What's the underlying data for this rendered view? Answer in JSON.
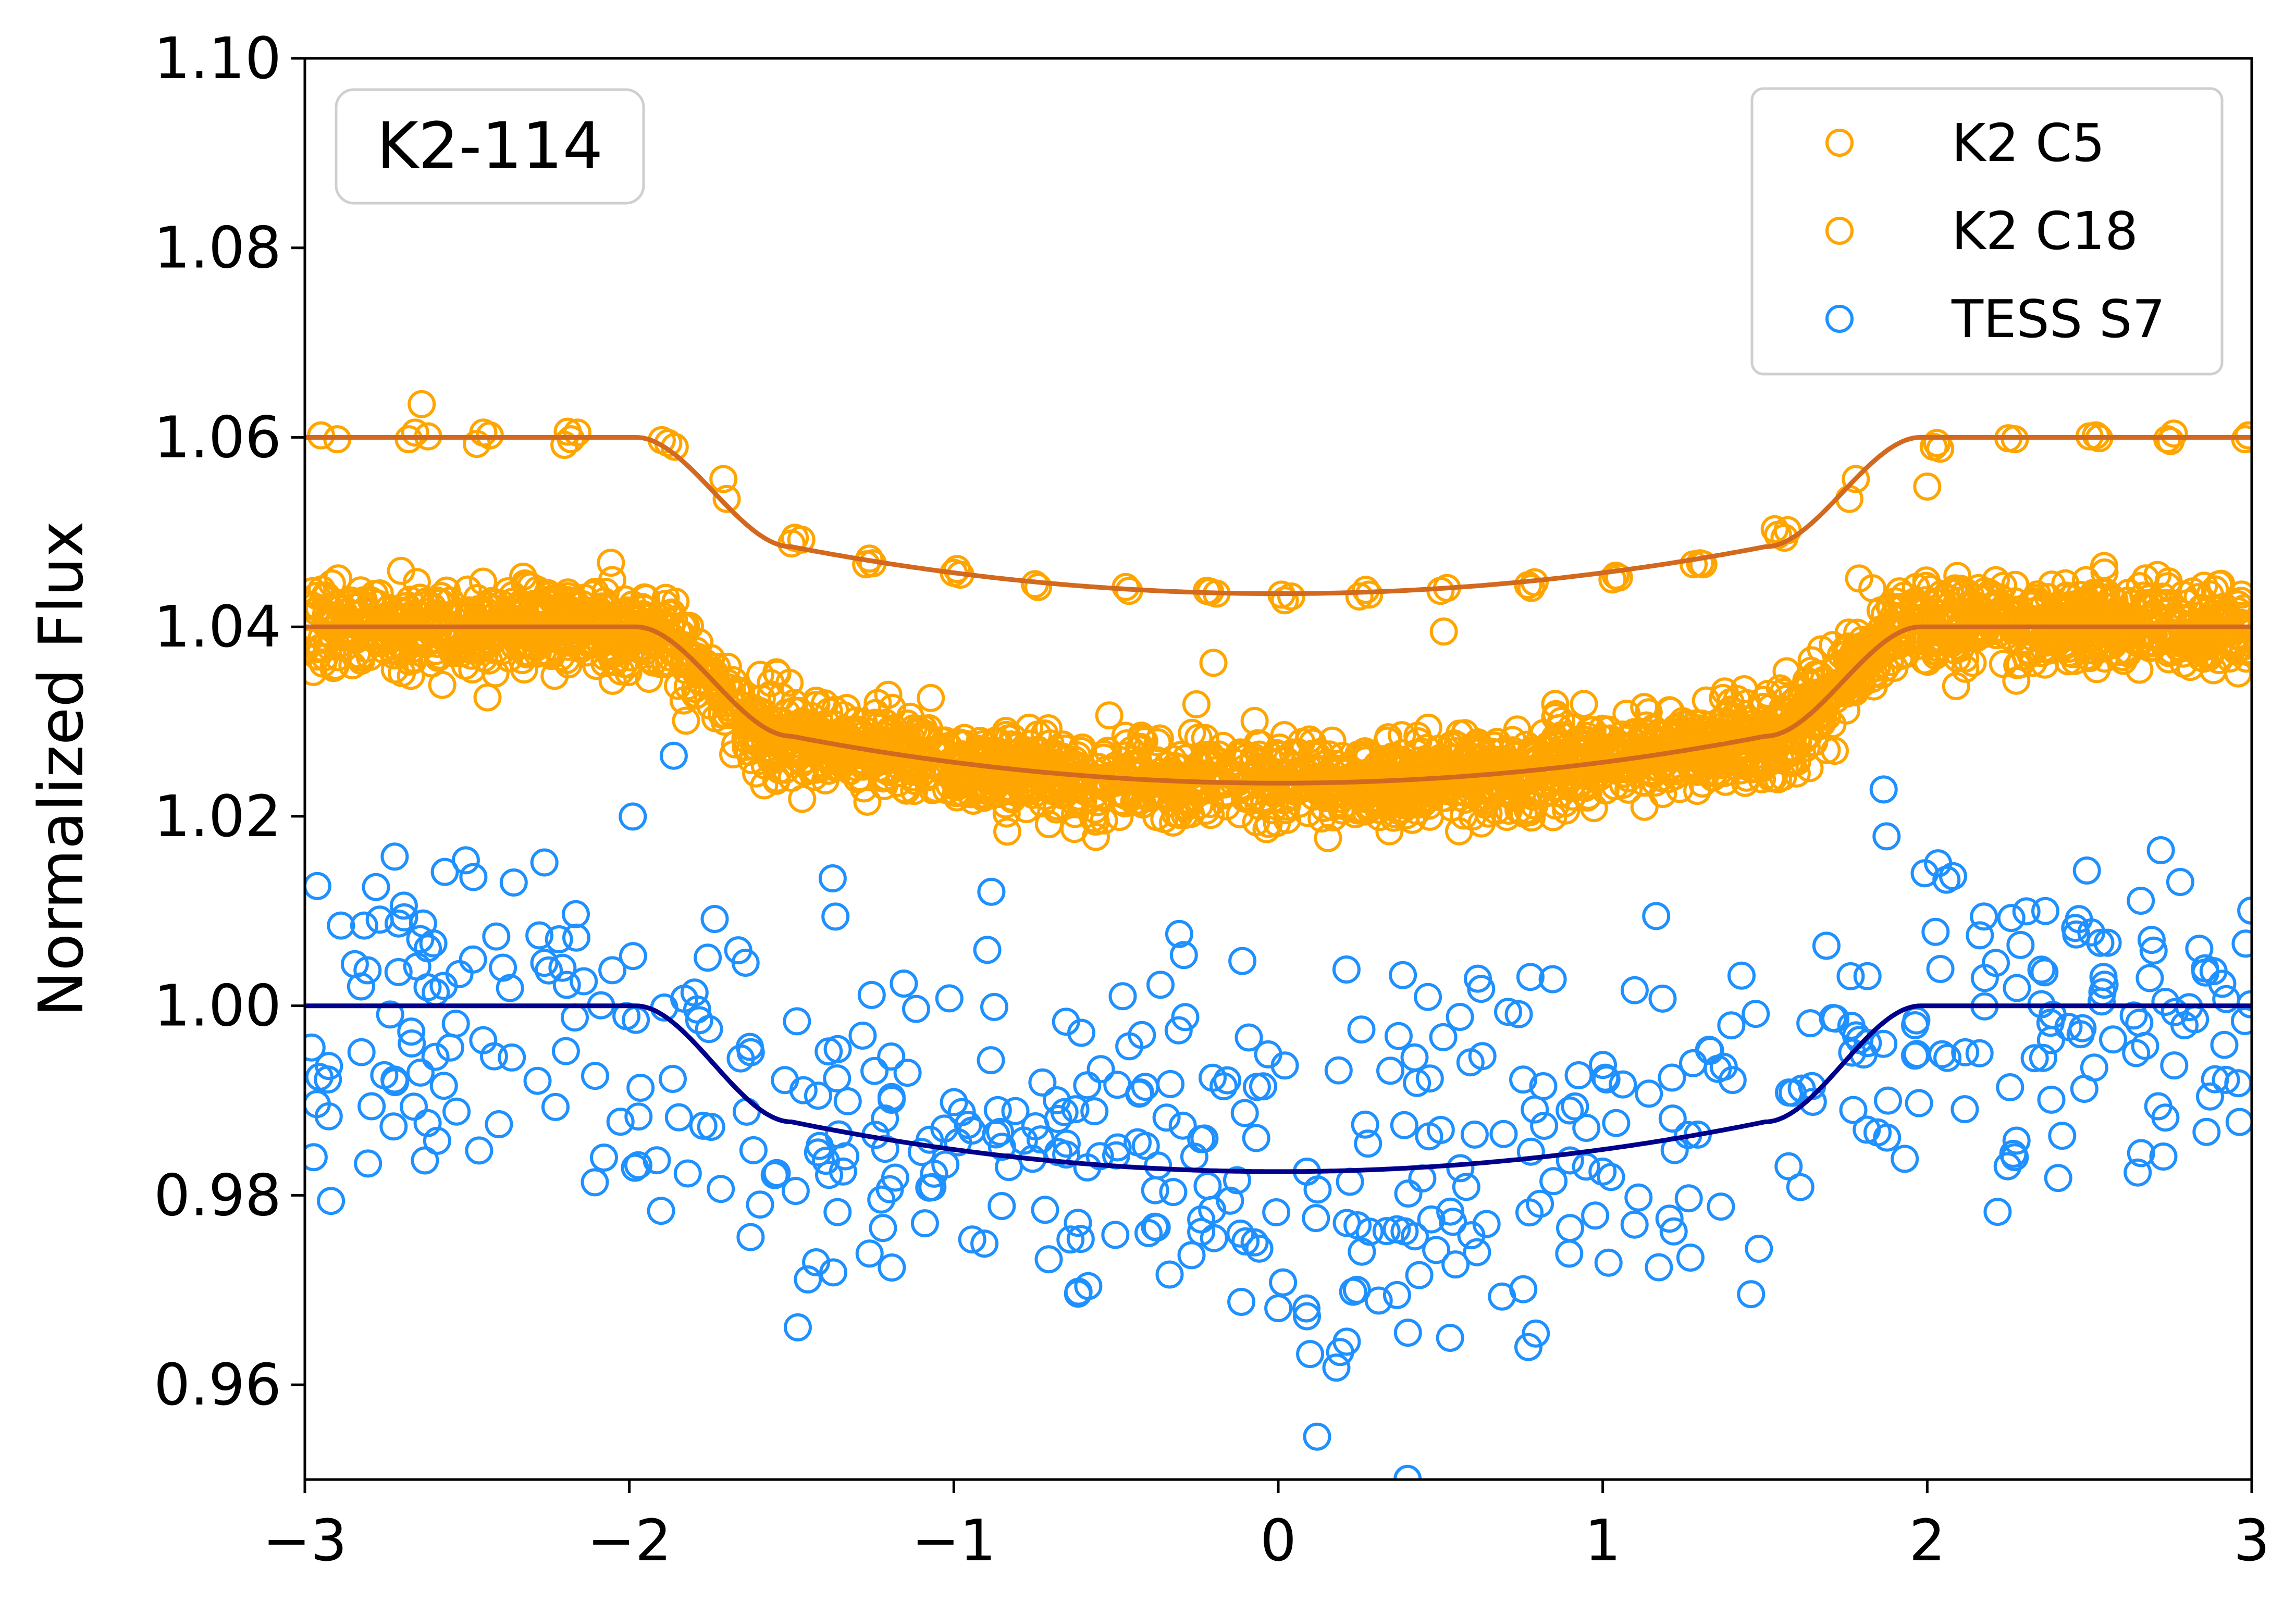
{
  "chart_data": {
    "type": "scatter",
    "title": "",
    "xlabel": "",
    "ylabel": "Normalized Flux",
    "xlim": [
      -3,
      3
    ],
    "ylim": [
      0.95,
      1.1
    ],
    "x_ticks": [
      "−3",
      "−2",
      "−1",
      "0",
      "1",
      "2",
      "3"
    ],
    "y_ticks": [
      "0.96",
      "0.98",
      "1.00",
      "1.02",
      "1.04",
      "1.06",
      "1.08",
      "1.10"
    ],
    "grid": false,
    "annotation": "K2-114",
    "legend_position": "top-right",
    "colors": {
      "k2_points": "#ffa500",
      "tess_points": "#1e90ff",
      "k2_model": "#d2691e",
      "tess_model": "#00008b"
    },
    "series": [
      {
        "name": "K2 C5",
        "kind": "points",
        "offset": 1.06,
        "depth": 0.0165,
        "scatter": 0.0008,
        "x": [
          -2.95,
          -2.9,
          -2.68,
          -2.66,
          -2.64,
          -2.62,
          -2.47,
          -2.45,
          -2.43,
          -2.2,
          -2.19,
          -2.18,
          -2.16,
          -1.9,
          -1.88,
          -1.86,
          -1.71,
          -1.7,
          -1.5,
          -1.49,
          -1.47,
          -1.27,
          -1.26,
          -1.25,
          -1.0,
          -0.99,
          -0.98,
          -0.75,
          -0.74,
          -0.47,
          -0.46,
          -0.22,
          -0.21,
          -0.2,
          -0.19,
          0.01,
          0.02,
          0.04,
          0.25,
          0.27,
          0.28,
          0.5,
          0.51,
          0.52,
          0.77,
          0.78,
          0.79,
          1.03,
          1.04,
          1.05,
          1.28,
          1.3,
          1.31,
          1.53,
          1.54,
          1.56,
          1.57,
          1.76,
          1.78,
          1.79,
          2.0,
          2.02,
          2.03,
          2.04,
          2.25,
          2.27,
          2.5,
          2.52,
          2.53,
          2.74,
          2.75,
          2.76,
          2.98,
          2.99
        ],
        "y": [
          1.0602,
          1.0598,
          1.0598,
          1.0605,
          1.0635,
          1.0601,
          1.0593,
          1.0605,
          1.0602,
          1.0592,
          1.0606,
          1.0598,
          1.0605,
          1.0597,
          1.0594,
          1.059,
          1.0556,
          1.0535,
          1.0488,
          1.0494,
          1.0492,
          1.0466,
          1.0472,
          1.0467,
          1.0457,
          1.0461,
          1.0455,
          1.0445,
          1.0442,
          1.0442,
          1.0438,
          1.0438,
          1.0437,
          1.0362,
          1.0435,
          1.0434,
          1.0428,
          1.0432,
          1.0432,
          1.0439,
          1.0434,
          1.0438,
          1.0395,
          1.0441,
          1.0444,
          1.0441,
          1.0447,
          1.045,
          1.0454,
          1.0452,
          1.0466,
          1.0467,
          1.0466,
          1.0503,
          1.0497,
          1.0494,
          1.0502,
          1.0535,
          1.0556,
          1.0451,
          1.0548,
          1.059,
          1.0594,
          1.0588,
          1.0599,
          1.0598,
          1.0601,
          1.0602,
          1.0599,
          1.0598,
          1.0596,
          1.0604,
          1.0598,
          1.0602
        ]
      },
      {
        "name": "K2 C18",
        "kind": "points",
        "offset": 1.04,
        "depth": 0.0165,
        "scatter": 0.0022,
        "npoints": 2800
      },
      {
        "name": "TESS S7",
        "kind": "points",
        "offset": 1.0,
        "depth": 0.0175,
        "scatter": 0.0095,
        "npoints": 520
      },
      {
        "name": "",
        "kind": "model",
        "offset": 1.06,
        "depth": 0.0165,
        "x_ingress_start": -1.98,
        "x_ingress_end": -1.5
      },
      {
        "name": "",
        "kind": "model",
        "offset": 1.04,
        "depth": 0.0165,
        "x_ingress_start": -1.98,
        "x_ingress_end": -1.5
      },
      {
        "name": "",
        "kind": "model",
        "offset": 1.0,
        "depth": 0.0175,
        "x_ingress_start": -1.98,
        "x_ingress_end": -1.5
      }
    ]
  }
}
